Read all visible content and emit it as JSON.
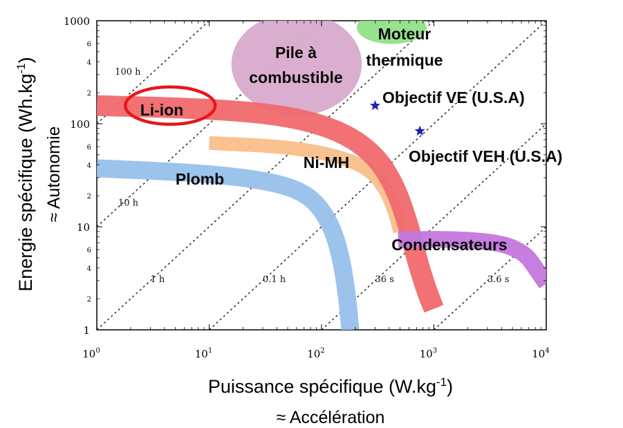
{
  "chart_data": {
    "type": "scatter",
    "title": "",
    "x_scale": "log",
    "y_scale": "log",
    "xlim": [
      1,
      10000
    ],
    "ylim": [
      1,
      1000
    ],
    "xlabel": "Puissance spécifique (W.kg-1)",
    "xlabel_line2": "≈ Accélération",
    "ylabel": "Energie spécifique (Wh.kg-1)",
    "ylabel_line2": "≈ Autonomie",
    "x_ticks": [
      {
        "base": "10",
        "exp": "0"
      },
      {
        "base": "10",
        "exp": "1"
      },
      {
        "base": "10",
        "exp": "2"
      },
      {
        "base": "10",
        "exp": "3"
      },
      {
        "base": "10",
        "exp": "4"
      }
    ],
    "y_ticks": [
      "1",
      "10",
      "100",
      "1000"
    ],
    "y_minor_labels": [
      "2",
      "4",
      "6"
    ],
    "iso_time_lines": [
      {
        "label": "100 h",
        "hours": 100
      },
      {
        "label": "10 h",
        "hours": 10
      },
      {
        "label": "1 h",
        "hours": 1
      },
      {
        "label": "0.1 h",
        "hours": 0.1
      },
      {
        "label": "36 s",
        "hours": 0.01
      },
      {
        "label": "3.6 s",
        "hours": 0.001
      }
    ],
    "series": [
      {
        "name": "Li-ion",
        "color": "#f0696e",
        "band": [
          [
            1,
            150
          ],
          [
            10,
            140
          ],
          [
            50,
            120
          ],
          [
            150,
            85
          ],
          [
            300,
            50
          ],
          [
            450,
            25
          ],
          [
            600,
            10
          ],
          [
            700,
            5
          ],
          [
            850,
            2.5
          ],
          [
            1000,
            1.6
          ]
        ]
      },
      {
        "name": "Ni-MH",
        "color": "#f9bf8a",
        "band": [
          [
            10,
            65
          ],
          [
            50,
            60
          ],
          [
            150,
            48
          ],
          [
            280,
            35
          ],
          [
            380,
            22
          ],
          [
            450,
            14
          ],
          [
            500,
            9
          ]
        ]
      },
      {
        "name": "Plomb",
        "color": "#97c0ea",
        "band": [
          [
            1,
            37
          ],
          [
            10,
            33
          ],
          [
            40,
            27
          ],
          [
            80,
            20
          ],
          [
            120,
            11
          ],
          [
            150,
            5
          ],
          [
            170,
            2
          ],
          [
            180,
            1
          ]
        ]
      },
      {
        "name": "Condensateurs",
        "color": "#c377dd",
        "band": [
          [
            480,
            7.5
          ],
          [
            1500,
            7.6
          ],
          [
            4000,
            7
          ],
          [
            6500,
            5.5
          ],
          [
            8000,
            4
          ],
          [
            10000,
            2.8
          ]
        ]
      }
    ],
    "regions": [
      {
        "name": "Pile à combustible",
        "label_lines": [
          "Pile à",
          "combustible"
        ],
        "color": "#d8aacb",
        "x": 70,
        "y": 350
      },
      {
        "name": "Moteur thermique",
        "label_lines": [
          "Moteur",
          "thermique"
        ],
        "color": "#92e089",
        "x": 450,
        "y": 800
      }
    ],
    "points": [
      {
        "name": "Objectif VE (U.S.A)",
        "x": 300,
        "y": 150,
        "color": "#1f1fb8"
      },
      {
        "name": "Objectif VEH (U.S.A)",
        "x": 750,
        "y": 85,
        "color": "#1f1fb8"
      }
    ],
    "highlight": {
      "name": "Li-ion",
      "color": "#e8161a"
    },
    "grid": false,
    "legend": "none"
  }
}
